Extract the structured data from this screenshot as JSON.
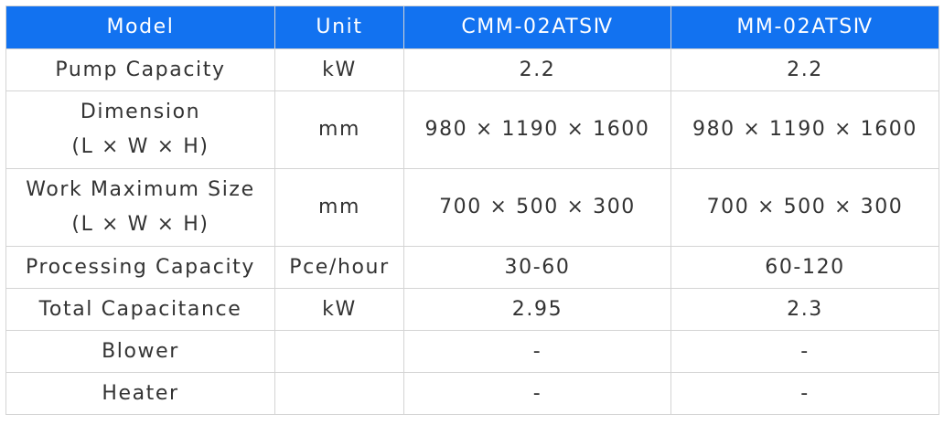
{
  "header_color": "#1272f0",
  "columns": [
    "Model",
    "Unit",
    "CMM-02ATSⅣ",
    "MM-02ATSⅣ"
  ],
  "rows": [
    {
      "label": [
        "Pump Capacity"
      ],
      "unit": "kW",
      "values": [
        "2.2",
        "2.2"
      ]
    },
    {
      "label": [
        "Dimension",
        "(L × W × H)"
      ],
      "unit": "mm",
      "values": [
        "980 × 1190 × 1600",
        "980 × 1190 × 1600"
      ]
    },
    {
      "label": [
        "Work Maximum Size",
        "(L × W × H)"
      ],
      "unit": "mm",
      "values": [
        "700 × 500 × 300",
        "700 × 500 × 300"
      ]
    },
    {
      "label": [
        "Processing Capacity"
      ],
      "unit": "Pce/hour",
      "values": [
        "30-60",
        "60-120"
      ]
    },
    {
      "label": [
        "Total Capacitance"
      ],
      "unit": "kW",
      "values": [
        "2.95",
        "2.3"
      ]
    },
    {
      "label": [
        "Blower"
      ],
      "unit": "",
      "values": [
        "-",
        "-"
      ]
    },
    {
      "label": [
        "Heater"
      ],
      "unit": "",
      "values": [
        "-",
        "-"
      ]
    }
  ]
}
